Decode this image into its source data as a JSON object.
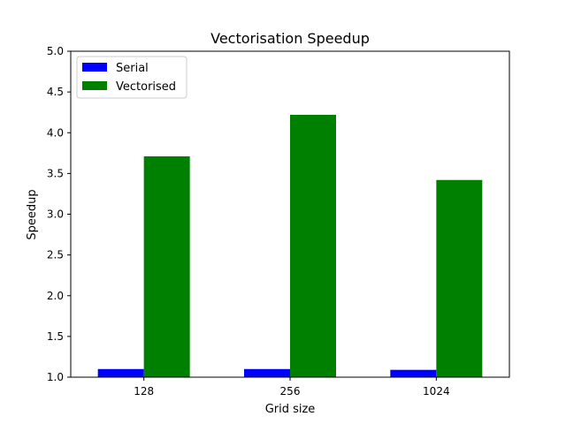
{
  "chart_data": {
    "type": "bar",
    "title": "Vectorisation Speedup",
    "xlabel": "Grid size",
    "ylabel": "Speedup",
    "categories": [
      "128",
      "256",
      "1024"
    ],
    "ylim": [
      1.0,
      5.0
    ],
    "yticks": [
      "1.0",
      "1.5",
      "2.0",
      "2.5",
      "3.0",
      "3.5",
      "4.0",
      "4.5",
      "5.0"
    ],
    "grid": false,
    "legend_position": "upper-left",
    "series": [
      {
        "name": "Serial",
        "color": "#0000ff",
        "values": [
          1.1,
          1.1,
          1.09
        ]
      },
      {
        "name": "Vectorised",
        "color": "#008000",
        "values": [
          3.71,
          4.22,
          3.42
        ]
      }
    ]
  }
}
